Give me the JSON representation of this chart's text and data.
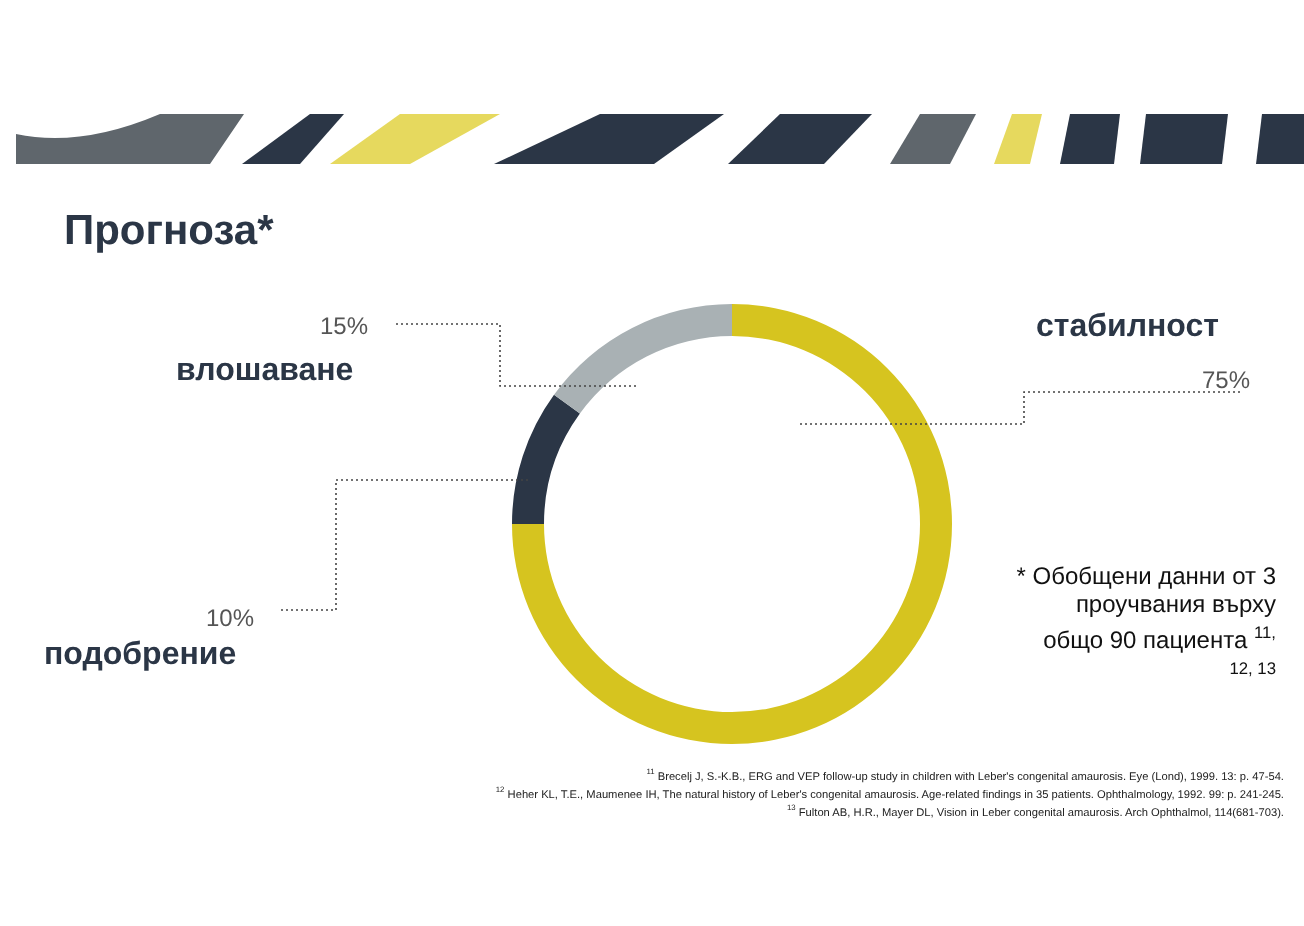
{
  "chart_data": {
    "type": "donut",
    "title": "Прогноза*",
    "categories": [
      "стабилност",
      "подобрение",
      "влошаване"
    ],
    "values": [
      75,
      10,
      15
    ],
    "value_labels": [
      "75%",
      "10%",
      "15%"
    ],
    "colors": [
      "#d6c41f",
      "#2b3646",
      "#a9b1b4"
    ],
    "annotations": [
      "* Обобщени данни от 3 проучвания върху общо 90 пациента $^{11, 12, 13}$",
      "$^{11}$ Brecelj J, S.-K.B., ERG and VEP follow-up study in children with Leber's congenital amaurosis. Eye (Lond), 1999. 13: p. 47-54.",
      "$^{12}$ Heher KL, T.E., Maumenee IH, The natural history of Leber's congenital amaurosis. Age-related findings in 35 patients. Ophthalmology, 1992. 99: p. 241-245.",
      "$^{13}$ Fulton AB, H.R., Mayer DL, Vision in Leber congenital amaurosis. Arch Ophthalmol, 114(681-703)."
    ]
  }
}
